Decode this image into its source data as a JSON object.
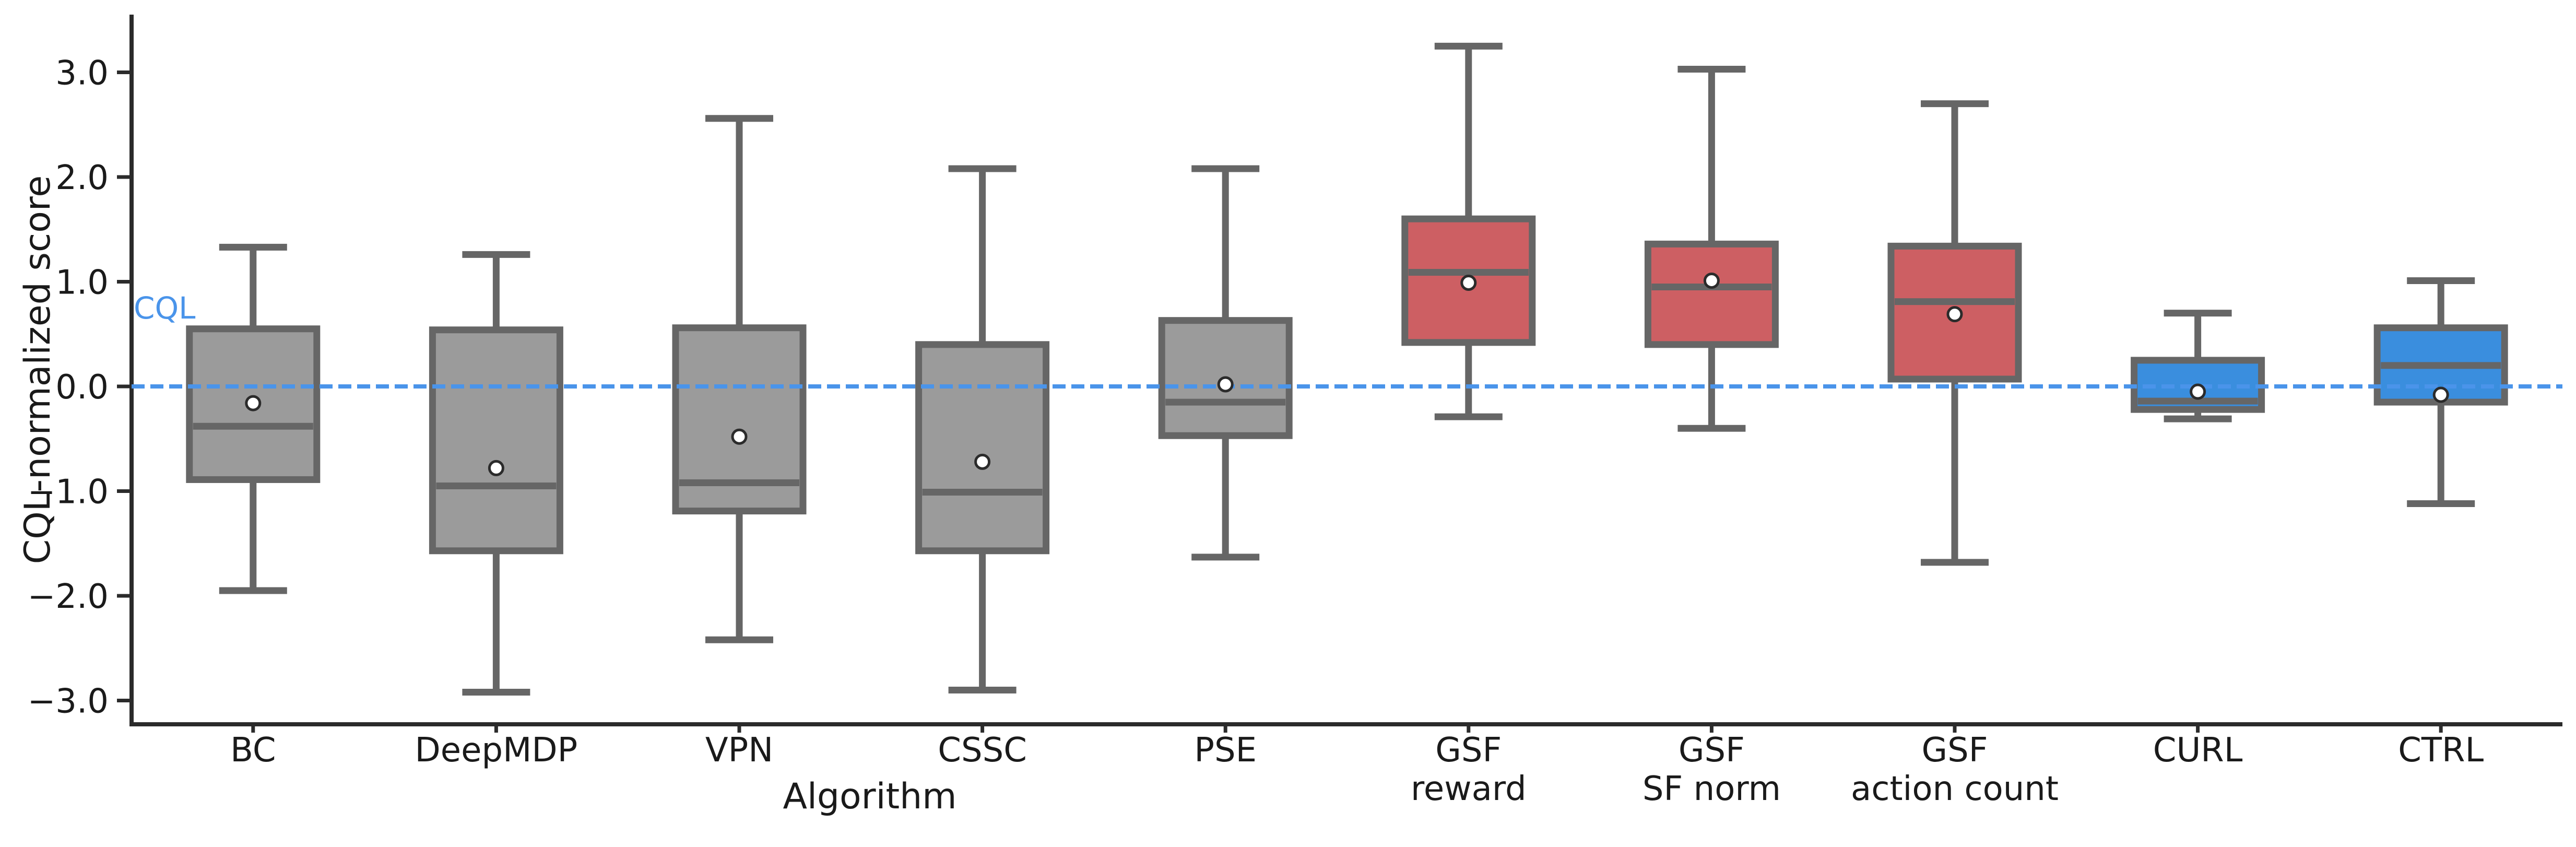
{
  "chart_data": {
    "type": "boxplot",
    "title": "",
    "xlabel": "Algorithm",
    "ylabel": "CQL-normalized score",
    "ylim": [
      -3.23,
      3.54
    ],
    "grid": false,
    "legend": "none",
    "yticks": [
      3.0,
      2.0,
      1.0,
      0.0,
      -1.0,
      -2.0,
      -3.0
    ],
    "ytick_labels": [
      "3.0",
      "2.0",
      "1.0",
      "0.0",
      "−1.0",
      "−2.0",
      "−3.0"
    ],
    "reference_line": {
      "label": "CQL",
      "value": 0.0,
      "style": "dashed"
    },
    "mean_marker": "white dot with dark ring",
    "groups": [
      {
        "label": [
          "BC"
        ],
        "group": "baseline",
        "whisker_low": -1.95,
        "q1": -0.89,
        "median": -0.38,
        "q3": 0.55,
        "whisker_high": 1.33,
        "mean": -0.16
      },
      {
        "label": [
          "DeepMDP"
        ],
        "group": "baseline",
        "whisker_low": -2.92,
        "q1": -1.57,
        "median": -0.95,
        "q3": 0.54,
        "whisker_high": 1.26,
        "mean": -0.78
      },
      {
        "label": [
          "VPN"
        ],
        "group": "baseline",
        "whisker_low": -2.42,
        "q1": -1.19,
        "median": -0.92,
        "q3": 0.56,
        "whisker_high": 2.56,
        "mean": -0.48
      },
      {
        "label": [
          "CSSC"
        ],
        "group": "baseline",
        "whisker_low": -2.9,
        "q1": -1.57,
        "median": -1.01,
        "q3": 0.4,
        "whisker_high": 2.08,
        "mean": -0.72
      },
      {
        "label": [
          "PSE"
        ],
        "group": "baseline",
        "whisker_low": -1.63,
        "q1": -0.47,
        "median": -0.15,
        "q3": 0.63,
        "whisker_high": 2.08,
        "mean": 0.02
      },
      {
        "label": [
          "GSF",
          "reward"
        ],
        "group": "gsf",
        "whisker_low": -0.29,
        "q1": 0.42,
        "median": 1.09,
        "q3": 1.6,
        "whisker_high": 3.25,
        "mean": 0.99
      },
      {
        "label": [
          "GSF",
          "SF norm"
        ],
        "group": "gsf",
        "whisker_low": -0.4,
        "q1": 0.4,
        "median": 0.95,
        "q3": 1.36,
        "whisker_high": 3.03,
        "mean": 1.01
      },
      {
        "label": [
          "GSF",
          "action count"
        ],
        "group": "gsf",
        "whisker_low": -1.68,
        "q1": 0.07,
        "median": 0.81,
        "q3": 1.34,
        "whisker_high": 2.7,
        "mean": 0.69
      },
      {
        "label": [
          "CURL"
        ],
        "group": "contrastive",
        "whisker_low": -0.31,
        "q1": -0.22,
        "median": -0.14,
        "q3": 0.25,
        "whisker_high": 0.7,
        "mean": -0.05
      },
      {
        "label": [
          "CTRL"
        ],
        "group": "contrastive",
        "whisker_low": -1.12,
        "q1": -0.15,
        "median": 0.2,
        "q3": 0.56,
        "whisker_high": 1.01,
        "mean": -0.08
      }
    ],
    "style": {
      "colors": {
        "baseline": "#9b9b9b",
        "gsf": "#cd5f63",
        "contrastive": "#3a8ede"
      },
      "box_edge": "#666666",
      "axis": "#2b2b2b",
      "text": "#1a1a1a",
      "reference": "#4a94ea",
      "mean_fill": "#ffffff",
      "mean_edge": "#2b2b2b"
    }
  }
}
